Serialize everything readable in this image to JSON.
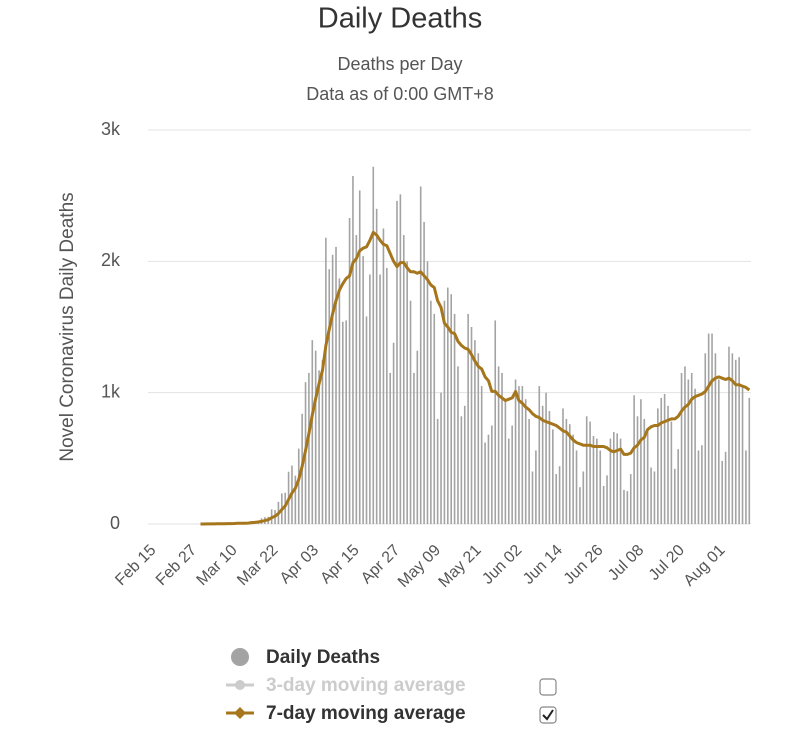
{
  "chart_data": {
    "type": "bar",
    "title": "Daily Deaths",
    "subtitle": [
      "Deaths per Day",
      "Data as of 0:00 GMT+8"
    ],
    "y_label": "Novel Coronavirus Daily Deaths",
    "ylim": [
      0,
      3000
    ],
    "yticks": [
      0,
      {
        "value": 1000,
        "label": "1k"
      },
      {
        "value": 2000,
        "label": "2k"
      },
      {
        "value": 3000,
        "label": "3k"
      }
    ],
    "grid": true,
    "categories": [
      "Feb 15",
      null,
      null,
      null,
      null,
      null,
      null,
      null,
      null,
      null,
      null,
      null,
      "Feb 27",
      null,
      null,
      null,
      null,
      null,
      null,
      null,
      null,
      null,
      null,
      null,
      "Mar 10",
      null,
      null,
      null,
      null,
      null,
      null,
      null,
      null,
      null,
      null,
      null,
      "Mar 22",
      null,
      null,
      null,
      null,
      null,
      null,
      null,
      null,
      null,
      null,
      null,
      "Apr 03",
      null,
      null,
      null,
      null,
      null,
      null,
      null,
      null,
      null,
      null,
      null,
      "Apr 15",
      null,
      null,
      null,
      null,
      null,
      null,
      null,
      null,
      null,
      null,
      null,
      "Apr 27",
      null,
      null,
      null,
      null,
      null,
      null,
      null,
      null,
      null,
      null,
      null,
      "May 09",
      null,
      null,
      null,
      null,
      null,
      null,
      null,
      null,
      null,
      null,
      null,
      "May 21",
      null,
      null,
      null,
      null,
      null,
      null,
      null,
      null,
      null,
      null,
      null,
      "Jun 02",
      null,
      null,
      null,
      null,
      null,
      null,
      null,
      null,
      null,
      null,
      null,
      "Jun 14",
      null,
      null,
      null,
      null,
      null,
      null,
      null,
      null,
      null,
      null,
      null,
      "Jun 26",
      null,
      null,
      null,
      null,
      null,
      null,
      null,
      null,
      null,
      null,
      null,
      "Jul 08",
      null,
      null,
      null,
      null,
      null,
      null,
      null,
      null,
      null,
      null,
      null,
      "Jul 20",
      null,
      null,
      null,
      null,
      null,
      null,
      null,
      null,
      null,
      null,
      null,
      "Aug 01",
      null,
      null,
      null,
      null,
      null,
      null,
      null,
      null,
      null
    ],
    "series": [
      {
        "name": "Daily Deaths",
        "color": "#a3a3a3",
        "series_type": "bar",
        "values": [
          0,
          0,
          0,
          0,
          0,
          0,
          0,
          0,
          0,
          0,
          0,
          0,
          0,
          0,
          1,
          0,
          1,
          5,
          1,
          2,
          1,
          2,
          3,
          4,
          4,
          8,
          7,
          10,
          7,
          11,
          23,
          20,
          25,
          43,
          52,
          55,
          112,
          106,
          169,
          233,
          238,
          398,
          445,
          368,
          574,
          839,
          1080,
          1150,
          1400,
          1320,
          1170,
          1250,
          2180,
          1940,
          2050,
          2110,
          1870,
          1540,
          1550,
          2330,
          2650,
          2200,
          2540,
          2040,
          1580,
          1900,
          2720,
          2400,
          1900,
          2250,
          1950,
          1150,
          1380,
          2460,
          2510,
          2200,
          2000,
          1700,
          1150,
          1320,
          2570,
          2300,
          2000,
          1700,
          1600,
          800,
          1000,
          1700,
          1800,
          1750,
          1600,
          1200,
          820,
          900,
          1600,
          1500,
          1400,
          1300,
          1050,
          620,
          680,
          750,
          1550,
          1200,
          1150,
          950,
          650,
          750,
          1100,
          1050,
          1050,
          950,
          800,
          400,
          560,
          1050,
          900,
          1000,
          860,
          720,
          380,
          440,
          880,
          800,
          760,
          680,
          560,
          280,
          400,
          820,
          780,
          670,
          650,
          560,
          290,
          370,
          650,
          700,
          690,
          650,
          260,
          250,
          380,
          980,
          820,
          950,
          800,
          700,
          430,
          400,
          880,
          960,
          990,
          900,
          780,
          420,
          570,
          1150,
          1200,
          1100,
          1150,
          1030,
          560,
          600,
          1300,
          1450,
          1450,
          1300,
          1100,
          480,
          550,
          1350,
          1300,
          1250,
          1270,
          1050,
          560,
          960
        ]
      },
      {
        "name": "3-day moving average",
        "color": "#cccccc",
        "series_type": "line",
        "visible": false
      },
      {
        "name": "7-day moving average",
        "color": "#a5761c",
        "series_type": "line",
        "visible": true,
        "values": [
          null,
          null,
          null,
          null,
          null,
          null,
          null,
          null,
          null,
          null,
          null,
          null,
          null,
          null,
          null,
          0,
          0,
          1,
          1,
          1,
          2,
          2,
          2,
          3,
          3,
          4,
          5,
          6,
          6,
          7,
          10,
          12,
          15,
          20,
          26,
          33,
          47,
          59,
          80,
          110,
          138,
          187,
          237,
          273,
          340,
          438,
          558,
          688,
          831,
          956,
          1070,
          1170,
          1360,
          1480,
          1600,
          1700,
          1780,
          1830,
          1870,
          1890,
          1990,
          2020,
          2080,
          2100,
          2110,
          2160,
          2220,
          2200,
          2160,
          2130,
          2120,
          2060,
          2000,
          1960,
          1990,
          1990,
          1950,
          1920,
          1920,
          1910,
          1920,
          1890,
          1860,
          1820,
          1800,
          1700,
          1650,
          1530,
          1500,
          1460,
          1450,
          1390,
          1360,
          1340,
          1330,
          1290,
          1240,
          1200,
          1180,
          1120,
          1090,
          1010,
          1010,
          980,
          960,
          940,
          950,
          960,
          1010,
          940,
          920,
          890,
          870,
          840,
          820,
          810,
          790,
          780,
          770,
          760,
          750,
          730,
          710,
          700,
          670,
          640,
          620,
          610,
          600,
          600,
          600,
          590,
          590,
          590,
          590,
          580,
          560,
          550,
          560,
          570,
          530,
          530,
          540,
          580,
          600,
          640,
          660,
          720,
          740,
          750,
          750,
          770,
          780,
          790,
          800,
          800,
          820,
          860,
          890,
          910,
          950,
          970,
          980,
          990,
          1010,
          1050,
          1090,
          1110,
          1120,
          1110,
          1100,
          1110,
          1090,
          1060,
          1060,
          1050,
          1040,
          1020
        ]
      }
    ]
  }
}
